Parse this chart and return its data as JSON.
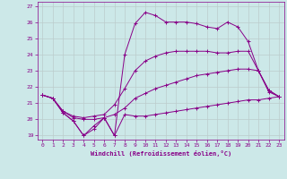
{
  "xlabel": "Windchill (Refroidissement éolien,°C)",
  "background_color": "#cce8e8",
  "grid_color": "#bbcccc",
  "line_color": "#880088",
  "xlim": [
    -0.5,
    23.5
  ],
  "ylim": [
    18.75,
    27.25
  ],
  "xticks": [
    0,
    1,
    2,
    3,
    4,
    5,
    6,
    7,
    8,
    9,
    10,
    11,
    12,
    13,
    14,
    15,
    16,
    17,
    18,
    19,
    20,
    21,
    22,
    23
  ],
  "yticks": [
    19,
    20,
    21,
    22,
    23,
    24,
    25,
    26,
    27
  ],
  "series": [
    {
      "x": [
        0,
        1,
        2,
        3,
        4,
        5,
        6,
        7,
        8,
        9,
        10,
        11,
        12,
        13,
        14,
        15,
        16,
        17,
        18,
        19,
        20,
        21,
        22,
        23
      ],
      "y": [
        21.5,
        21.3,
        20.4,
        19.9,
        19.0,
        19.6,
        20.1,
        19.0,
        20.3,
        20.2,
        20.2,
        20.3,
        20.4,
        20.5,
        20.6,
        20.7,
        20.8,
        20.9,
        21.0,
        21.1,
        21.2,
        21.2,
        21.3,
        21.4
      ]
    },
    {
      "x": [
        0,
        1,
        2,
        3,
        4,
        5,
        6,
        7,
        8,
        9,
        10,
        11,
        12,
        13,
        14,
        15,
        16,
        17,
        18,
        19,
        20,
        21,
        22,
        23
      ],
      "y": [
        21.5,
        21.3,
        20.5,
        20.1,
        20.0,
        20.0,
        20.1,
        20.3,
        20.7,
        21.3,
        21.6,
        21.9,
        22.1,
        22.3,
        22.5,
        22.7,
        22.8,
        22.9,
        23.0,
        23.1,
        23.1,
        23.0,
        21.7,
        21.4
      ]
    },
    {
      "x": [
        0,
        1,
        2,
        3,
        4,
        5,
        6,
        7,
        8,
        9,
        10,
        11,
        12,
        13,
        14,
        15,
        16,
        17,
        18,
        19,
        20,
        21,
        22,
        23
      ],
      "y": [
        21.5,
        21.3,
        20.5,
        20.2,
        20.1,
        20.2,
        20.3,
        20.9,
        21.9,
        23.0,
        23.6,
        23.9,
        24.1,
        24.2,
        24.2,
        24.2,
        24.2,
        24.1,
        24.1,
        24.2,
        24.2,
        23.0,
        21.8,
        21.4
      ]
    },
    {
      "x": [
        0,
        1,
        2,
        3,
        4,
        5,
        6,
        7,
        8,
        9,
        10,
        11,
        12,
        13,
        14,
        15,
        16,
        17,
        18,
        19,
        20,
        21,
        22,
        23
      ],
      "y": [
        21.5,
        21.3,
        20.4,
        19.9,
        19.0,
        19.4,
        20.1,
        19.0,
        24.0,
        25.9,
        26.6,
        26.4,
        26.0,
        26.0,
        26.0,
        25.9,
        25.7,
        25.6,
        26.0,
        25.7,
        24.8,
        23.0,
        21.8,
        21.4
      ]
    }
  ]
}
